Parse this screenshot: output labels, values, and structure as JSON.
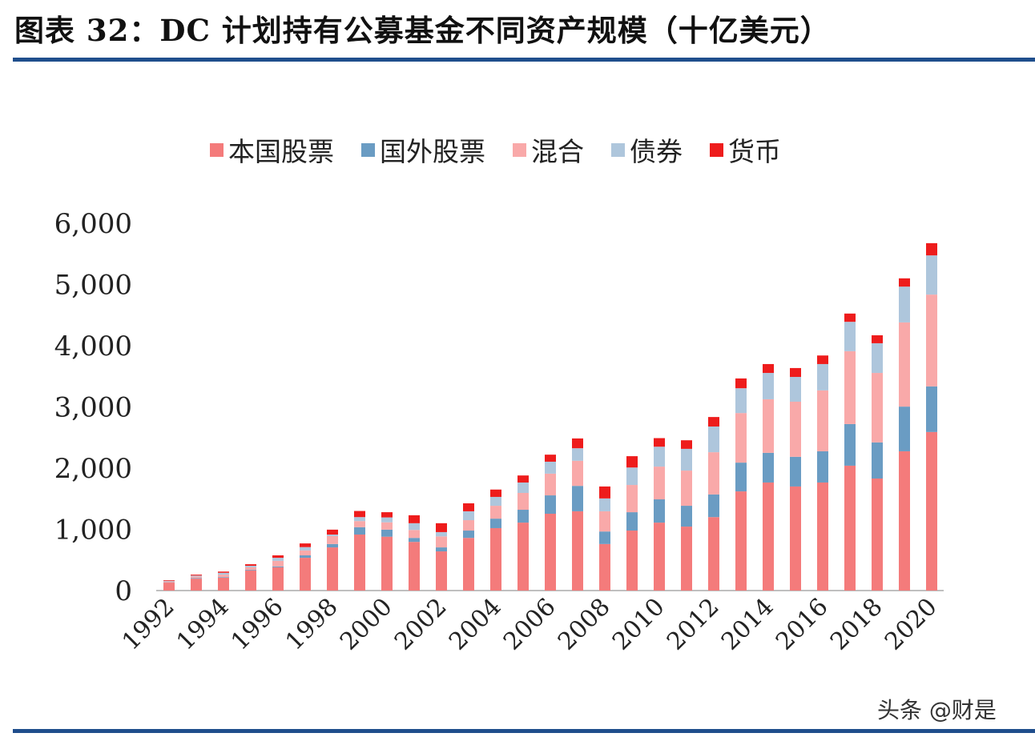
{
  "title": "图表 32：DC 计划持有公募基金不同资产规模（十亿美元）",
  "watermark": "头条 @财是",
  "chart_data": {
    "type": "bar",
    "stacked": true,
    "title": "",
    "xlabel": "",
    "ylabel": "",
    "ylim": [
      0,
      6000
    ],
    "yticks": [
      "0",
      "1,000",
      "2,000",
      "3,000",
      "4,000",
      "5,000",
      "6,000"
    ],
    "ytick_values": [
      0,
      1000,
      2000,
      3000,
      4000,
      5000,
      6000
    ],
    "grid": false,
    "legend_position": "top",
    "categories": [
      1992,
      1993,
      1994,
      1995,
      1996,
      1997,
      1998,
      1999,
      2000,
      2001,
      2002,
      2003,
      2004,
      2005,
      2006,
      2007,
      2008,
      2009,
      2010,
      2011,
      2012,
      2013,
      2014,
      2015,
      2016,
      2017,
      2018,
      2019,
      2020
    ],
    "xtick_labels": [
      "1992",
      "1994",
      "1996",
      "1998",
      "2000",
      "2002",
      "2004",
      "2006",
      "2008",
      "2010",
      "2012",
      "2014",
      "2016",
      "2018",
      "2020"
    ],
    "series": [
      {
        "name": "本国股票",
        "color": "#f47b7b",
        "values": [
          130,
          195,
          210,
          330,
          380,
          535,
          705,
          915,
          880,
          795,
          640,
          860,
          1020,
          1110,
          1255,
          1295,
          760,
          980,
          1110,
          1045,
          1200,
          1620,
          1765,
          1700,
          1765,
          2040,
          1830,
          2275,
          2590
        ]
      },
      {
        "name": "国外股票",
        "color": "#6a9cc3",
        "values": [
          5,
          10,
          10,
          10,
          15,
          40,
          55,
          120,
          115,
          65,
          65,
          120,
          155,
          210,
          300,
          415,
          205,
          300,
          380,
          340,
          370,
          470,
          485,
          485,
          510,
          680,
          590,
          730,
          745
        ]
      },
      {
        "name": "混合",
        "color": "#f9a9a9",
        "values": [
          15,
          25,
          40,
          40,
          90,
          80,
          130,
          100,
          120,
          130,
          180,
          170,
          210,
          275,
          355,
          410,
          330,
          445,
          535,
          575,
          690,
          810,
          875,
          900,
          995,
          1190,
          1135,
          1375,
          1500
        ]
      },
      {
        "name": "债券",
        "color": "#aec6dc",
        "values": [
          10,
          15,
          30,
          25,
          50,
          55,
          25,
          65,
          80,
          110,
          70,
          145,
          145,
          170,
          195,
          205,
          210,
          285,
          325,
          355,
          420,
          405,
          430,
          405,
          430,
          480,
          485,
          585,
          640
        ]
      },
      {
        "name": "货币",
        "color": "#ee1c1c",
        "values": [
          10,
          15,
          20,
          25,
          40,
          60,
          80,
          100,
          85,
          130,
          145,
          130,
          120,
          115,
          115,
          160,
          195,
          185,
          140,
          140,
          155,
          160,
          145,
          145,
          140,
          135,
          130,
          135,
          200
        ]
      }
    ]
  }
}
